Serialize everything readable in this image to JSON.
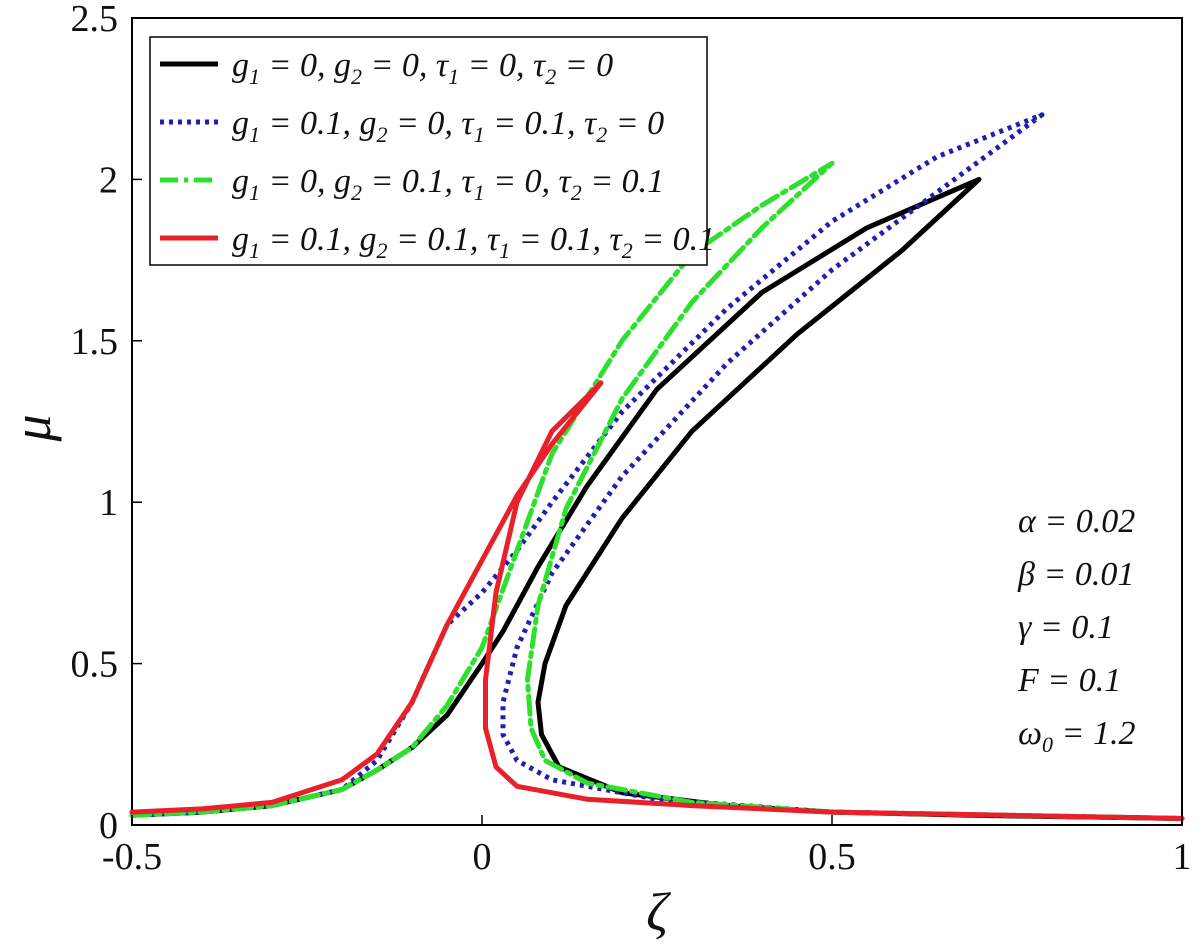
{
  "chart_data": {
    "type": "line",
    "xlabel": "ζ",
    "ylabel": "μ",
    "xlim": [
      -0.5,
      1
    ],
    "ylim": [
      0,
      2.5
    ],
    "x_ticks": [
      "-0.5",
      "0",
      "0.5",
      "1"
    ],
    "y_ticks": [
      "0",
      "0.5",
      "1",
      "1.5",
      "2",
      "2.5"
    ],
    "grid": false,
    "legend_position": "top-left",
    "series": [
      {
        "name": "g1 = 0, g2 = 0, τ1 = 0, τ2 = 0",
        "color": "#000000",
        "style": "solid",
        "points": [
          [
            -0.5,
            0.03
          ],
          [
            -0.4,
            0.04
          ],
          [
            -0.3,
            0.06
          ],
          [
            -0.2,
            0.11
          ],
          [
            -0.15,
            0.17
          ],
          [
            -0.1,
            0.24
          ],
          [
            -0.05,
            0.34
          ],
          [
            0,
            0.5
          ],
          [
            0.03,
            0.6
          ],
          [
            0.08,
            0.8
          ],
          [
            0.15,
            1.05
          ],
          [
            0.25,
            1.35
          ],
          [
            0.4,
            1.65
          ],
          [
            0.55,
            1.85
          ],
          [
            0.71,
            2.0
          ],
          [
            0.6,
            1.78
          ],
          [
            0.45,
            1.52
          ],
          [
            0.3,
            1.22
          ],
          [
            0.2,
            0.95
          ],
          [
            0.12,
            0.68
          ],
          [
            0.09,
            0.5
          ],
          [
            0.08,
            0.38
          ],
          [
            0.085,
            0.28
          ],
          [
            0.11,
            0.18
          ],
          [
            0.2,
            0.1
          ],
          [
            0.35,
            0.06
          ],
          [
            0.5,
            0.04
          ],
          [
            0.7,
            0.03
          ],
          [
            1.0,
            0.02
          ]
        ]
      },
      {
        "name": "g1 = 0.1, g2 = 0, τ1 = 0.1, τ2 = 0",
        "color": "#1f1fb0",
        "style": "dotted",
        "points": [
          [
            -0.5,
            0.03
          ],
          [
            -0.4,
            0.04
          ],
          [
            -0.3,
            0.06
          ],
          [
            -0.2,
            0.11
          ],
          [
            -0.15,
            0.2
          ],
          [
            -0.1,
            0.38
          ],
          [
            -0.05,
            0.62
          ],
          [
            0,
            0.72
          ],
          [
            0.05,
            0.85
          ],
          [
            0.1,
            1.0
          ],
          [
            0.2,
            1.28
          ],
          [
            0.35,
            1.6
          ],
          [
            0.5,
            1.87
          ],
          [
            0.65,
            2.07
          ],
          [
            0.8,
            2.2
          ],
          [
            0.65,
            1.96
          ],
          [
            0.5,
            1.72
          ],
          [
            0.35,
            1.43
          ],
          [
            0.2,
            1.08
          ],
          [
            0.1,
            0.78
          ],
          [
            0.05,
            0.55
          ],
          [
            0.03,
            0.38
          ],
          [
            0.03,
            0.28
          ],
          [
            0.05,
            0.2
          ],
          [
            0.1,
            0.14
          ],
          [
            0.25,
            0.08
          ],
          [
            0.5,
            0.04
          ],
          [
            0.75,
            0.03
          ],
          [
            1.0,
            0.02
          ]
        ]
      },
      {
        "name": "g1 = 0, g2 = 0.1, τ1 = 0, τ2 = 0.1",
        "color": "#2ee02e",
        "style": "dashdot",
        "points": [
          [
            -0.5,
            0.03
          ],
          [
            -0.4,
            0.04
          ],
          [
            -0.3,
            0.06
          ],
          [
            -0.2,
            0.11
          ],
          [
            -0.15,
            0.17
          ],
          [
            -0.1,
            0.24
          ],
          [
            -0.05,
            0.37
          ],
          [
            0,
            0.55
          ],
          [
            0.05,
            0.85
          ],
          [
            0.1,
            1.15
          ],
          [
            0.2,
            1.5
          ],
          [
            0.3,
            1.77
          ],
          [
            0.4,
            1.92
          ],
          [
            0.5,
            2.05
          ],
          [
            0.4,
            1.85
          ],
          [
            0.3,
            1.62
          ],
          [
            0.2,
            1.32
          ],
          [
            0.12,
            0.98
          ],
          [
            0.08,
            0.68
          ],
          [
            0.065,
            0.45
          ],
          [
            0.07,
            0.3
          ],
          [
            0.09,
            0.2
          ],
          [
            0.15,
            0.13
          ],
          [
            0.3,
            0.07
          ],
          [
            0.5,
            0.04
          ],
          [
            0.75,
            0.03
          ],
          [
            1.0,
            0.02
          ]
        ]
      },
      {
        "name": "g1 = 0.1, g2 = 0.1, τ1 = 0.1, τ2 = 0.1",
        "color": "#e8202a",
        "style": "solid",
        "points": [
          [
            -0.5,
            0.04
          ],
          [
            -0.4,
            0.05
          ],
          [
            -0.3,
            0.07
          ],
          [
            -0.2,
            0.14
          ],
          [
            -0.15,
            0.22
          ],
          [
            -0.1,
            0.38
          ],
          [
            -0.05,
            0.62
          ],
          [
            0,
            0.82
          ],
          [
            0.05,
            1.02
          ],
          [
            0.1,
            1.18
          ],
          [
            0.17,
            1.37
          ],
          [
            0.1,
            1.22
          ],
          [
            0.05,
            1.0
          ],
          [
            0.02,
            0.72
          ],
          [
            0.005,
            0.45
          ],
          [
            0.005,
            0.3
          ],
          [
            0.02,
            0.18
          ],
          [
            0.05,
            0.12
          ],
          [
            0.15,
            0.08
          ],
          [
            0.3,
            0.06
          ],
          [
            0.5,
            0.04
          ],
          [
            0.75,
            0.03
          ],
          [
            1.0,
            0.02
          ]
        ]
      }
    ]
  },
  "legend": [
    {
      "g1": "0",
      "g2": "0",
      "t1": "0",
      "t2": "0"
    },
    {
      "g1": "0.1",
      "g2": "0",
      "t1": "0.1",
      "t2": "0"
    },
    {
      "g1": "0",
      "g2": "0.1",
      "t1": "0",
      "t2": "0.1"
    },
    {
      "g1": "0.1",
      "g2": "0.1",
      "t1": "0.1",
      "t2": "0.1"
    }
  ],
  "parameters": [
    {
      "sym": "α",
      "sub": "",
      "value": "0.02"
    },
    {
      "sym": "β",
      "sub": "",
      "value": "0.01"
    },
    {
      "sym": "γ",
      "sub": "",
      "value": "0.1"
    },
    {
      "sym": "F",
      "sub": "",
      "value": "0.1"
    },
    {
      "sym": "ω",
      "sub": "0",
      "value": "1.2"
    }
  ]
}
